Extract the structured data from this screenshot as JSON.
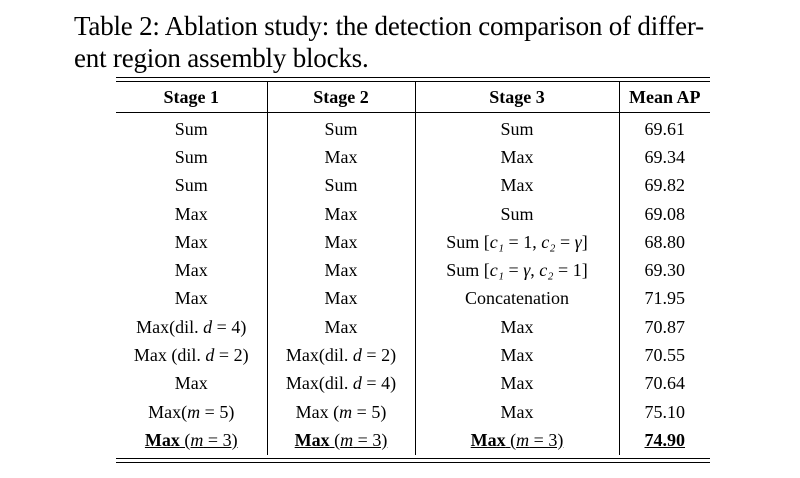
{
  "caption": {
    "line1": "Table 2: Ablation study: the detection comparison of differ-",
    "line2": "ent region assembly blocks."
  },
  "table": {
    "headers": [
      "Stage 1",
      "Stage 2",
      "Stage 3",
      "Mean AP"
    ],
    "rows": [
      [
        "Sum",
        "Sum",
        "Sum",
        "69.61"
      ],
      [
        "Sum",
        "Max",
        "Max",
        "69.34"
      ],
      [
        "Sum",
        "Sum",
        "Max",
        "69.82"
      ],
      [
        "Max",
        "Max",
        "Sum",
        "69.08"
      ],
      [
        "Max",
        "Max",
        "Sum [c₁ = 1, c₂ = γ]",
        "68.80"
      ],
      [
        "Max",
        "Max",
        "Sum [c₁ = γ, c₂ = 1]",
        "69.30"
      ],
      [
        "Max",
        "Max",
        "Concatenation",
        "71.95"
      ],
      [
        "Max(dil. d = 4)",
        "Max",
        "Max",
        "70.87"
      ],
      [
        "Max (dil. d = 2)",
        "Max(dil. d = 2)",
        "Max",
        "70.55"
      ],
      [
        "Max",
        "Max(dil. d = 4)",
        "Max",
        "70.64"
      ],
      [
        "Max(m = 5)",
        "Max (m = 5)",
        "Max",
        "75.10"
      ],
      [
        "Max (m = 3)",
        "Max (m = 3)",
        "Max (m = 3)",
        "74.90"
      ]
    ]
  }
}
